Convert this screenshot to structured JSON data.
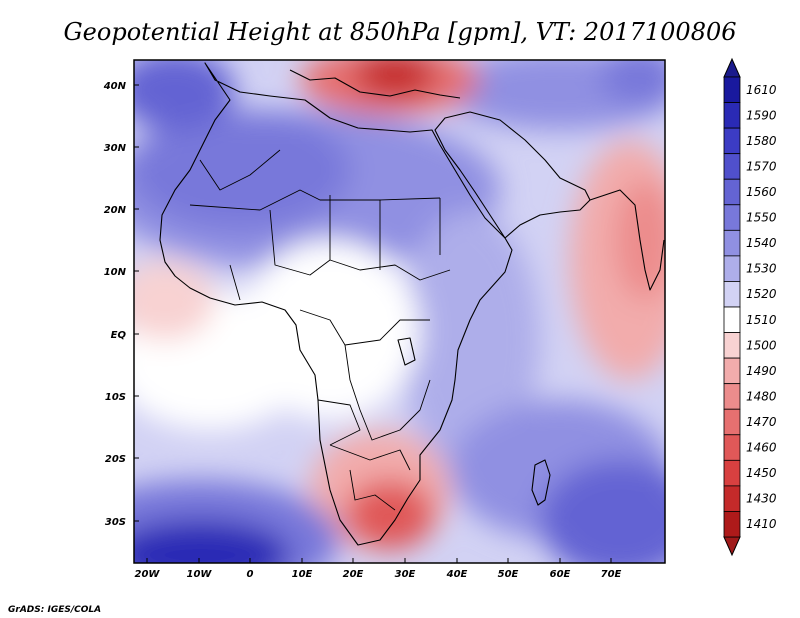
{
  "title": "Geopotential Height at 850hPa [gpm], VT: 2017100806",
  "credit": "GrADS: IGES/COLA",
  "map": {
    "lon_ticks": [
      "20W",
      "10W",
      "0",
      "10E",
      "20E",
      "30E",
      "40E",
      "50E",
      "60E",
      "70E"
    ],
    "lat_ticks": [
      "40N",
      "30N",
      "20N",
      "10N",
      "EQ",
      "10S",
      "20S",
      "30S"
    ]
  },
  "colorbar": {
    "levels": [
      "1610",
      "1590",
      "1580",
      "1570",
      "1560",
      "1550",
      "1540",
      "1530",
      "1520",
      "1510",
      "1500",
      "1490",
      "1480",
      "1470",
      "1460",
      "1450",
      "1430",
      "1410"
    ],
    "colors": [
      "#19199e",
      "#2a2ab5",
      "#3c3cc4",
      "#5050cc",
      "#6464d3",
      "#7878da",
      "#9090e2",
      "#aeaeea",
      "#d2d2f4",
      "#ffffff",
      "#f8d2d2",
      "#f2acac",
      "#ec8c8c",
      "#e67070",
      "#e05858",
      "#d84040",
      "#c42a2a",
      "#ae1a1a"
    ],
    "top_arrow_color": "#1a1a8c",
    "bottom_arrow_color": "#a01a1a"
  }
}
